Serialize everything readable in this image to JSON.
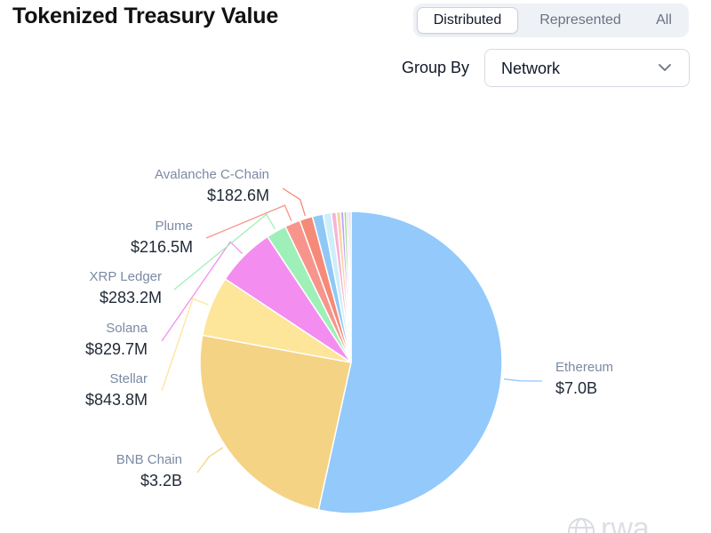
{
  "title": "Tokenized Treasury Value",
  "tabs": [
    {
      "label": "Distributed",
      "active": true
    },
    {
      "label": "Represented",
      "active": false
    },
    {
      "label": "All",
      "active": false
    }
  ],
  "group_by": {
    "label": "Group By",
    "value": "Network",
    "icon": "chevron-down-icon"
  },
  "watermark": {
    "text": "rwa",
    "icon": "globe-icon"
  },
  "chart_data": {
    "type": "pie",
    "title": "",
    "slices": [
      {
        "name": "Ethereum",
        "value_label": "$7.0B",
        "value": 7000,
        "color": "#93c9fb",
        "labeled": true
      },
      {
        "name": "BNB Chain",
        "value_label": "$3.2B",
        "value": 3200,
        "color": "#f5d385",
        "labeled": true
      },
      {
        "name": "Stellar",
        "value_label": "$843.8M",
        "value": 843.8,
        "color": "#fde59a",
        "labeled": true
      },
      {
        "name": "Solana",
        "value_label": "$829.7M",
        "value": 829.7,
        "color": "#f38ef0",
        "labeled": true
      },
      {
        "name": "XRP Ledger",
        "value_label": "$283.2M",
        "value": 283.2,
        "color": "#9ff0b8",
        "labeled": true
      },
      {
        "name": "Plume",
        "value_label": "$216.5M",
        "value": 216.5,
        "color": "#f7958d",
        "labeled": true
      },
      {
        "name": "Avalanche C-Chain",
        "value_label": "$182.6M",
        "value": 182.6,
        "color": "#f58a78",
        "labeled": true
      },
      {
        "name": "",
        "value_label": "",
        "value": 150,
        "color": "#90c8f5",
        "labeled": false
      },
      {
        "name": "",
        "value_label": "",
        "value": 115,
        "color": "#cdeefa",
        "labeled": false
      },
      {
        "name": "",
        "value_label": "",
        "value": 70,
        "color": "#f6b3d6",
        "labeled": false
      },
      {
        "name": "",
        "value_label": "",
        "value": 60,
        "color": "#fbd2a6",
        "labeled": false
      },
      {
        "name": "",
        "value_label": "",
        "value": 45,
        "color": "#b9a6f7",
        "labeled": false
      },
      {
        "name": "",
        "value_label": "",
        "value": 40,
        "color": "#a7d98a",
        "labeled": false
      },
      {
        "name": "",
        "value_label": "",
        "value": 30,
        "color": "#d2c8f7",
        "labeled": false
      },
      {
        "name": "",
        "value_label": "",
        "value": 30,
        "color": "#c9c9c9",
        "labeled": false
      }
    ]
  }
}
